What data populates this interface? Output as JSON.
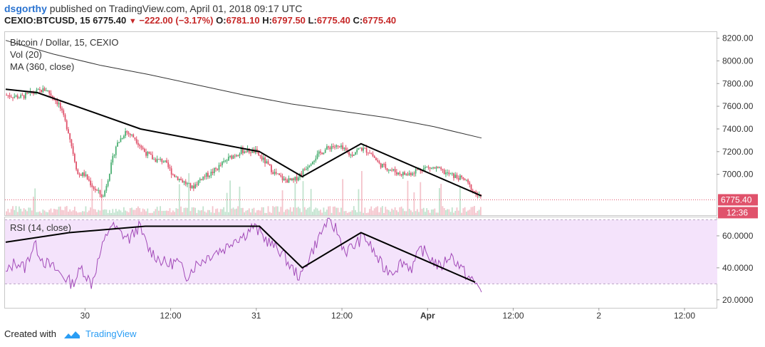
{
  "header": {
    "user": "dsgorthy",
    "published": "published on TradingView.com, April 01, 2018 09:17 UTC",
    "symbol": "CEXIO:BTCUSD, 15",
    "last": "6775.40",
    "change": "−222.00 (−3.17%)",
    "o_label": "O:",
    "o_value": "6781.10",
    "h_label": "H:",
    "h_value": "6797.50",
    "l_label": "L:",
    "l_value": "6775.40",
    "c_label": "C:",
    "c_value": "6775.40"
  },
  "legend": {
    "title": "Bitcoin / Dollar, 15, CEXIO",
    "vol": "Vol (20)",
    "ma": "MA (360, close)",
    "rsi": "RSI (14, close)"
  },
  "footer": {
    "created_with": "Created with",
    "brand": "TradingView"
  },
  "colors": {
    "up": "#4caf73",
    "down": "#e0526b",
    "ma": "#333333",
    "rsi": "#a24ab8",
    "rsi_band": "#f4e3fb",
    "trend": "#000000",
    "price_tag": "#e0526b"
  },
  "chart_data": [
    {
      "type": "candlestick",
      "title": "Bitcoin / Dollar, 15, CEXIO",
      "x_ticks": [
        "30",
        "12:00",
        "31",
        "12:00",
        "Apr",
        "12:00",
        "2",
        "12:00"
      ],
      "y_ticks": [
        "8200.00",
        "8000.00",
        "7800.00",
        "7600.00",
        "7400.00",
        "7200.00",
        "7000.00"
      ],
      "ylim": [
        6640,
        8260
      ],
      "last_price": 6775.4,
      "last_price_label": "6775.40",
      "countdown": "12:36",
      "price_path": [
        [
          0,
          7700
        ],
        [
          10,
          7680
        ],
        [
          18,
          7720
        ],
        [
          26,
          7750
        ],
        [
          34,
          7620
        ],
        [
          40,
          7380
        ],
        [
          46,
          7000
        ],
        [
          50,
          7000
        ],
        [
          56,
          6880
        ],
        [
          62,
          6800
        ],
        [
          70,
          7250
        ],
        [
          76,
          7380
        ],
        [
          82,
          7320
        ],
        [
          88,
          7200
        ],
        [
          94,
          7130
        ],
        [
          100,
          7120
        ],
        [
          106,
          7000
        ],
        [
          112,
          6940
        ],
        [
          118,
          6880
        ],
        [
          124,
          6970
        ],
        [
          130,
          7010
        ],
        [
          136,
          7080
        ],
        [
          142,
          7150
        ],
        [
          150,
          7210
        ],
        [
          158,
          7200
        ],
        [
          164,
          7110
        ],
        [
          170,
          7010
        ],
        [
          176,
          6950
        ],
        [
          182,
          6940
        ],
        [
          188,
          7030
        ],
        [
          194,
          7130
        ],
        [
          200,
          7200
        ],
        [
          206,
          7250
        ],
        [
          212,
          7230
        ],
        [
          218,
          7170
        ],
        [
          224,
          7230
        ],
        [
          230,
          7200
        ],
        [
          236,
          7090
        ],
        [
          242,
          7050
        ],
        [
          248,
          7010
        ],
        [
          254,
          7000
        ],
        [
          260,
          7040
        ],
        [
          266,
          7060
        ],
        [
          272,
          7050
        ],
        [
          278,
          7010
        ],
        [
          284,
          6980
        ],
        [
          290,
          6950
        ],
        [
          295,
          6860
        ],
        [
          300,
          6790
        ]
      ],
      "ma_path": [
        [
          0,
          8180
        ],
        [
          30,
          8060
        ],
        [
          60,
          7960
        ],
        [
          90,
          7880
        ],
        [
          120,
          7790
        ],
        [
          150,
          7700
        ],
        [
          180,
          7620
        ],
        [
          210,
          7560
        ],
        [
          240,
          7500
        ],
        [
          270,
          7420
        ],
        [
          300,
          7320
        ]
      ],
      "trendlines": [
        [
          [
            0,
            7750
          ],
          [
            20,
            7720
          ],
          [
            85,
            7400
          ],
          [
            160,
            7200
          ],
          [
            187,
            6980
          ],
          [
            224,
            7270
          ],
          [
            300,
            6810
          ]
        ]
      ]
    },
    {
      "type": "bar",
      "title": "Vol (20)",
      "note": "volume bars at bottom of price pane"
    },
    {
      "type": "line",
      "title": "RSI (14, close)",
      "y_ticks": [
        "60.0000",
        "40.0000",
        "20.0000"
      ],
      "ylim": [
        15,
        72
      ],
      "band": [
        30,
        70
      ],
      "rsi_path": [
        [
          0,
          36
        ],
        [
          6,
          44
        ],
        [
          12,
          40
        ],
        [
          18,
          55
        ],
        [
          24,
          44
        ],
        [
          30,
          40
        ],
        [
          36,
          35
        ],
        [
          42,
          30
        ],
        [
          48,
          40
        ],
        [
          54,
          30
        ],
        [
          60,
          50
        ],
        [
          66,
          67
        ],
        [
          72,
          62
        ],
        [
          78,
          58
        ],
        [
          84,
          66
        ],
        [
          90,
          52
        ],
        [
          96,
          46
        ],
        [
          102,
          42
        ],
        [
          108,
          44
        ],
        [
          114,
          35
        ],
        [
          120,
          42
        ],
        [
          126,
          46
        ],
        [
          132,
          50
        ],
        [
          138,
          52
        ],
        [
          144,
          58
        ],
        [
          150,
          60
        ],
        [
          156,
          66
        ],
        [
          162,
          60
        ],
        [
          168,
          54
        ],
        [
          174,
          50
        ],
        [
          180,
          40
        ],
        [
          186,
          34
        ],
        [
          190,
          44
        ],
        [
          196,
          56
        ],
        [
          202,
          68
        ],
        [
          208,
          65
        ],
        [
          214,
          50
        ],
        [
          220,
          54
        ],
        [
          226,
          60
        ],
        [
          232,
          50
        ],
        [
          238,
          40
        ],
        [
          244,
          38
        ],
        [
          250,
          44
        ],
        [
          256,
          40
        ],
        [
          262,
          52
        ],
        [
          268,
          46
        ],
        [
          274,
          40
        ],
        [
          280,
          48
        ],
        [
          284,
          44
        ],
        [
          290,
          36
        ],
        [
          296,
          30
        ],
        [
          300,
          27
        ]
      ],
      "trendlines": [
        [
          [
            0,
            56
          ],
          [
            40,
            62
          ],
          [
            88,
            66
          ],
          [
            160,
            66
          ],
          [
            187,
            40
          ],
          [
            224,
            62
          ],
          [
            296,
            31
          ]
        ]
      ]
    }
  ]
}
